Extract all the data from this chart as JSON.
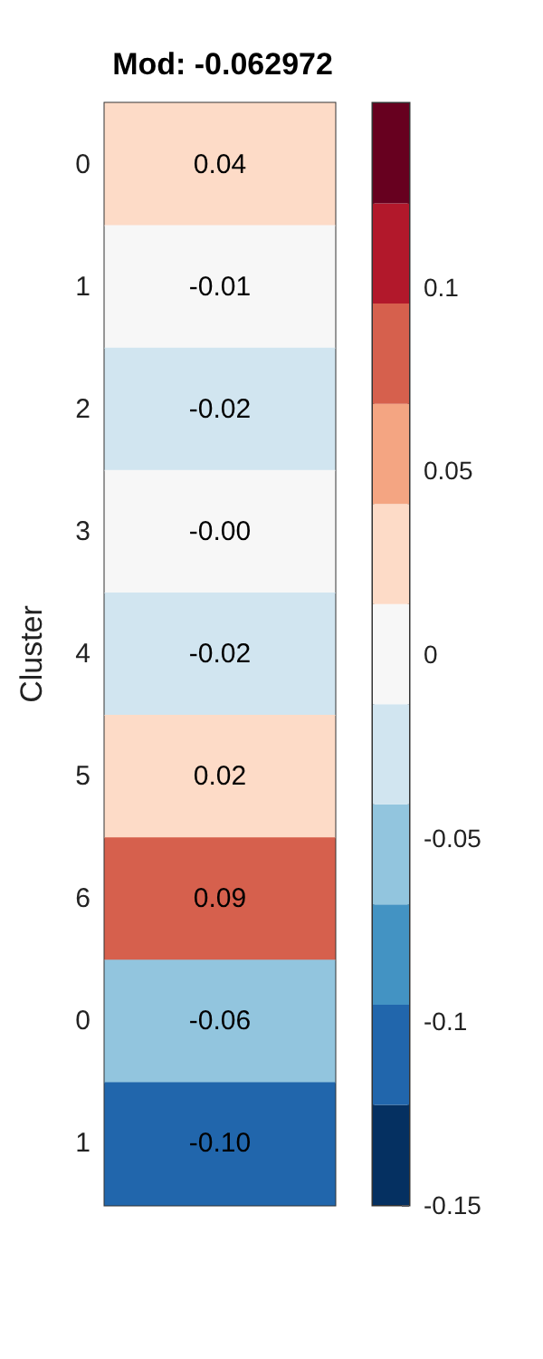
{
  "chart_data": {
    "type": "heatmap",
    "title": "Mod: -0.062972",
    "ylabel": "Cluster",
    "categories": [
      null
    ],
    "y_categories": [
      "0",
      "1",
      "2",
      "3",
      "4",
      "5",
      "6",
      "0",
      "1"
    ],
    "cells": [
      [
        0.04
      ],
      [
        -0.01
      ],
      [
        -0.02
      ],
      [
        0
      ],
      [
        -0.02
      ],
      [
        0.02
      ],
      [
        0.09
      ],
      [
        -0.06
      ],
      [
        -0.1
      ]
    ],
    "cell_labels": [
      [
        "0.04"
      ],
      [
        "-0.01"
      ],
      [
        "-0.02"
      ],
      [
        "-0.00"
      ],
      [
        "-0.02"
      ],
      [
        "0.02"
      ],
      [
        "0.09"
      ],
      [
        "-0.06"
      ],
      [
        "-0.10"
      ]
    ],
    "clim": [
      -0.15,
      0.15
    ],
    "cticks": [
      -0.15,
      -0.1,
      -0.05,
      0,
      0.05,
      0.1
    ],
    "colors": [
      "#053061",
      "#2166ac",
      "#4393c3",
      "#92c5de",
      "#d1e5f0",
      "#f7f7f7",
      "#fddbc7",
      "#f4a582",
      "#d6604d",
      "#b2182b",
      "#67001f"
    ]
  }
}
